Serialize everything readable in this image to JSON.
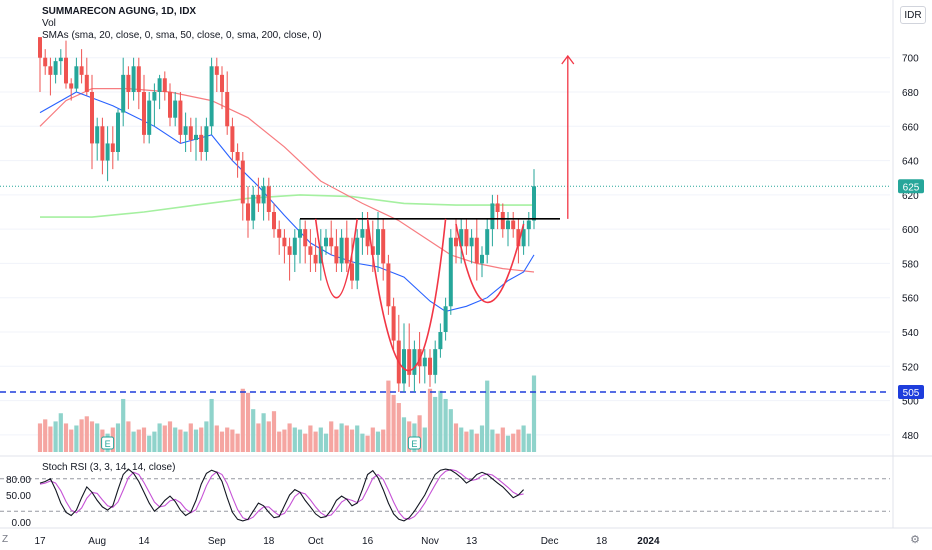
{
  "header": {
    "title": "SUMMARECON AGUNG, 1D, IDX",
    "volume_label": "Vol",
    "ma_label": "SMAs (sma, 20, close, 0, sma, 50, close, 0, sma, 200, close, 0)",
    "rsi_label": "Stoch RSI (3, 3, 14, 14, close)",
    "currency": "IDR",
    "corner_label": "Z",
    "settings_icon": "gear-icon"
  },
  "chart_data": {
    "type": "candlestick",
    "price_axis": {
      "ylim": [
        470,
        715
      ],
      "ticks": [
        700,
        680,
        660,
        640,
        620,
        600,
        580,
        560,
        540,
        520,
        500,
        480
      ]
    },
    "x_axis": {
      "ticks": [
        {
          "label": "17",
          "bar": 0
        },
        {
          "label": "Aug",
          "bar": 11
        },
        {
          "label": "14",
          "bar": 20
        },
        {
          "label": "Sep",
          "bar": 34
        },
        {
          "label": "18",
          "bar": 44
        },
        {
          "label": "Oct",
          "bar": 53
        },
        {
          "label": "16",
          "bar": 63
        },
        {
          "label": "Nov",
          "bar": 75
        },
        {
          "label": "13",
          "bar": 83
        },
        {
          "label": "Dec",
          "bar": 98
        },
        {
          "label": "18",
          "bar": 108
        },
        {
          "label": "2024",
          "bar": 117
        }
      ]
    },
    "current_price": 625,
    "current_price_label": "625",
    "support_level": 505,
    "support_label": "505",
    "neckline": 606,
    "target_arrow": {
      "from": 606,
      "to": 701
    },
    "candles": [
      [
        712,
        712,
        680,
        700
      ],
      [
        700,
        705,
        690,
        695
      ],
      [
        695,
        700,
        678,
        690
      ],
      [
        690,
        700,
        685,
        698
      ],
      [
        698,
        705,
        690,
        700
      ],
      [
        700,
        710,
        682,
        685
      ],
      [
        685,
        688,
        675,
        682
      ],
      [
        682,
        700,
        680,
        695
      ],
      [
        695,
        705,
        685,
        690
      ],
      [
        690,
        700,
        678,
        680
      ],
      [
        680,
        690,
        635,
        650
      ],
      [
        650,
        665,
        640,
        660
      ],
      [
        660,
        665,
        632,
        640
      ],
      [
        640,
        660,
        628,
        650
      ],
      [
        650,
        660,
        635,
        645
      ],
      [
        645,
        670,
        640,
        668
      ],
      [
        668,
        700,
        660,
        690
      ],
      [
        690,
        695,
        670,
        680
      ],
      [
        680,
        700,
        675,
        695
      ],
      [
        695,
        700,
        670,
        680
      ],
      [
        680,
        690,
        650,
        655
      ],
      [
        655,
        680,
        650,
        675
      ],
      [
        675,
        685,
        660,
        680
      ],
      [
        680,
        690,
        670,
        688
      ],
      [
        688,
        692,
        675,
        680
      ],
      [
        680,
        685,
        660,
        665
      ],
      [
        665,
        680,
        660,
        675
      ],
      [
        675,
        680,
        650,
        655
      ],
      [
        655,
        668,
        645,
        660
      ],
      [
        660,
        665,
        645,
        652
      ],
      [
        652,
        665,
        640,
        655
      ],
      [
        655,
        660,
        640,
        645
      ],
      [
        645,
        665,
        640,
        660
      ],
      [
        660,
        700,
        655,
        695
      ],
      [
        695,
        700,
        680,
        690
      ],
      [
        690,
        695,
        670,
        680
      ],
      [
        680,
        692,
        655,
        660
      ],
      [
        660,
        665,
        640,
        645
      ],
      [
        645,
        650,
        630,
        640
      ],
      [
        640,
        645,
        605,
        615
      ],
      [
        615,
        625,
        595,
        605
      ],
      [
        605,
        625,
        600,
        620
      ],
      [
        620,
        630,
        610,
        615
      ],
      [
        615,
        630,
        605,
        625
      ],
      [
        625,
        630,
        605,
        610
      ],
      [
        610,
        615,
        595,
        600
      ],
      [
        600,
        605,
        585,
        595
      ],
      [
        595,
        600,
        580,
        590
      ],
      [
        590,
        595,
        570,
        585
      ],
      [
        585,
        600,
        575,
        595
      ],
      [
        595,
        606,
        580,
        600
      ],
      [
        600,
        605,
        580,
        590
      ],
      [
        590,
        600,
        575,
        585
      ],
      [
        585,
        595,
        575,
        580
      ],
      [
        580,
        600,
        570,
        590
      ],
      [
        590,
        600,
        585,
        595
      ],
      [
        595,
        605,
        585,
        590
      ],
      [
        590,
        600,
        575,
        580
      ],
      [
        580,
        600,
        575,
        595
      ],
      [
        595,
        605,
        575,
        580
      ],
      [
        580,
        595,
        565,
        570
      ],
      [
        570,
        600,
        565,
        595
      ],
      [
        595,
        610,
        585,
        600
      ],
      [
        600,
        610,
        585,
        590
      ],
      [
        590,
        605,
        575,
        585
      ],
      [
        585,
        610,
        575,
        600
      ],
      [
        600,
        606,
        570,
        580
      ],
      [
        580,
        585,
        550,
        555
      ],
      [
        555,
        560,
        530,
        535
      ],
      [
        535,
        550,
        505,
        510
      ],
      [
        510,
        545,
        505,
        530
      ],
      [
        530,
        545,
        508,
        515
      ],
      [
        515,
        535,
        505,
        530
      ],
      [
        530,
        540,
        510,
        520
      ],
      [
        520,
        530,
        510,
        525
      ],
      [
        525,
        530,
        508,
        515
      ],
      [
        515,
        535,
        510,
        530
      ],
      [
        530,
        545,
        525,
        540
      ],
      [
        540,
        560,
        535,
        555
      ],
      [
        555,
        600,
        550,
        595
      ],
      [
        595,
        606,
        580,
        590
      ],
      [
        590,
        606,
        580,
        600
      ],
      [
        600,
        606,
        585,
        590
      ],
      [
        590,
        600,
        580,
        595
      ],
      [
        595,
        606,
        570,
        580
      ],
      [
        580,
        590,
        572,
        585
      ],
      [
        585,
        606,
        580,
        600
      ],
      [
        600,
        620,
        590,
        615
      ],
      [
        615,
        620,
        600,
        610
      ],
      [
        610,
        615,
        595,
        600
      ],
      [
        600,
        610,
        590,
        605
      ],
      [
        605,
        610,
        595,
        600
      ],
      [
        600,
        606,
        580,
        590
      ],
      [
        590,
        605,
        585,
        600
      ],
      [
        600,
        610,
        590,
        605
      ],
      [
        605,
        635,
        600,
        625
      ]
    ],
    "volume": [
      28,
      32,
      25,
      30,
      38,
      28,
      22,
      26,
      32,
      35,
      30,
      28,
      22,
      18,
      24,
      28,
      52,
      30,
      20,
      22,
      24,
      16,
      20,
      28,
      26,
      30,
      24,
      22,
      20,
      28,
      22,
      24,
      30,
      52,
      26,
      20,
      24,
      22,
      18,
      62,
      58,
      42,
      28,
      38,
      30,
      40,
      20,
      22,
      28,
      24,
      22,
      18,
      26,
      20,
      24,
      18,
      30,
      22,
      28,
      26,
      22,
      26,
      18,
      16,
      24,
      20,
      22,
      70,
      56,
      48,
      34,
      30,
      28,
      36,
      24,
      62,
      54,
      60,
      52,
      42,
      28,
      24,
      20,
      22,
      18,
      26,
      70,
      22,
      18,
      24,
      16,
      18,
      22,
      26,
      18,
      75
    ],
    "sma20": [
      [
        0,
        668
      ],
      [
        7,
        680
      ],
      [
        14,
        672
      ],
      [
        22,
        660
      ],
      [
        27,
        650
      ],
      [
        33,
        655
      ],
      [
        37,
        640
      ],
      [
        42,
        625
      ],
      [
        47,
        608
      ],
      [
        52,
        592
      ],
      [
        56,
        585
      ],
      [
        61,
        580
      ],
      [
        65,
        578
      ],
      [
        70,
        572
      ],
      [
        75,
        558
      ],
      [
        78,
        552
      ],
      [
        82,
        555
      ],
      [
        86,
        560
      ],
      [
        90,
        570
      ],
      [
        93,
        575
      ],
      [
        95,
        585
      ]
    ],
    "sma50": [
      [
        0,
        660
      ],
      [
        5,
        675
      ],
      [
        10,
        682
      ],
      [
        17,
        682
      ],
      [
        25,
        680
      ],
      [
        33,
        675
      ],
      [
        40,
        665
      ],
      [
        47,
        648
      ],
      [
        54,
        628
      ],
      [
        62,
        615
      ],
      [
        69,
        605
      ],
      [
        74,
        595
      ],
      [
        79,
        585
      ],
      [
        84,
        580
      ],
      [
        89,
        577
      ],
      [
        95,
        575
      ]
    ],
    "sma200": [
      [
        0,
        607
      ],
      [
        10,
        607
      ],
      [
        20,
        610
      ],
      [
        30,
        614
      ],
      [
        40,
        618
      ],
      [
        50,
        620
      ],
      [
        60,
        619
      ],
      [
        70,
        615
      ],
      [
        80,
        614
      ],
      [
        90,
        614
      ],
      [
        95,
        614
      ]
    ],
    "pattern_arcs": [
      {
        "bars": [
          53,
          57,
          61
        ],
        "prices": [
          606,
          560,
          606
        ]
      },
      {
        "bars": [
          63,
          68,
          74,
          78
        ],
        "prices": [
          606,
          508,
          508,
          606
        ]
      },
      {
        "bars": [
          80,
          84,
          88,
          93
        ],
        "prices": [
          603,
          562,
          562,
          603
        ]
      }
    ],
    "stoch_rsi": {
      "ticks": [
        80,
        50,
        0
      ],
      "tick_labels": [
        "80.00",
        "50.00",
        "0.00"
      ],
      "k": [
        72,
        75,
        80,
        60,
        35,
        18,
        12,
        22,
        45,
        65,
        55,
        40,
        28,
        22,
        30,
        60,
        88,
        98,
        90,
        75,
        55,
        35,
        20,
        28,
        40,
        48,
        38,
        22,
        12,
        18,
        40,
        70,
        90,
        96,
        92,
        75,
        45,
        18,
        5,
        2,
        5,
        20,
        35,
        30,
        18,
        8,
        10,
        30,
        50,
        60,
        55,
        40,
        28,
        15,
        8,
        10,
        22,
        40,
        48,
        42,
        30,
        35,
        60,
        88,
        95,
        82,
        60,
        35,
        15,
        5,
        2,
        8,
        20,
        35,
        50,
        70,
        88,
        96,
        98,
        96,
        90,
        82,
        72,
        78,
        88,
        92,
        88,
        80,
        72,
        65,
        55,
        45,
        50,
        60
      ],
      "d": [
        70,
        72,
        76,
        72,
        58,
        38,
        22,
        17,
        26,
        44,
        55,
        53,
        41,
        30,
        27,
        37,
        59,
        82,
        92,
        88,
        73,
        55,
        37,
        28,
        30,
        39,
        42,
        36,
        24,
        17,
        23,
        43,
        67,
        85,
        93,
        88,
        71,
        46,
        23,
        8,
        4,
        9,
        20,
        28,
        28,
        19,
        12,
        16,
        30,
        47,
        55,
        52,
        41,
        28,
        17,
        11,
        13,
        24,
        37,
        43,
        40,
        36,
        42,
        61,
        81,
        88,
        79,
        59,
        37,
        18,
        7,
        5,
        10,
        21,
        35,
        52,
        69,
        85,
        94,
        97,
        95,
        89,
        81,
        77,
        79,
        86,
        89,
        87,
        80,
        72,
        64,
        55,
        50,
        52
      ]
    }
  },
  "colors": {
    "up": "#26a69a",
    "down": "#ef5350",
    "up_volume": "#8fd3cb",
    "down_volume": "#f5a5a1",
    "sma20": "#2962ff",
    "sma50": "#f77c80",
    "sma200": "#a5f0a0",
    "support": "#1e3ddc",
    "arc": "#f23645",
    "target": "#f23645",
    "k_line": "#131722",
    "d_line": "#c653d6",
    "grid": "#f0f3fa",
    "axis_text": "#131722"
  }
}
